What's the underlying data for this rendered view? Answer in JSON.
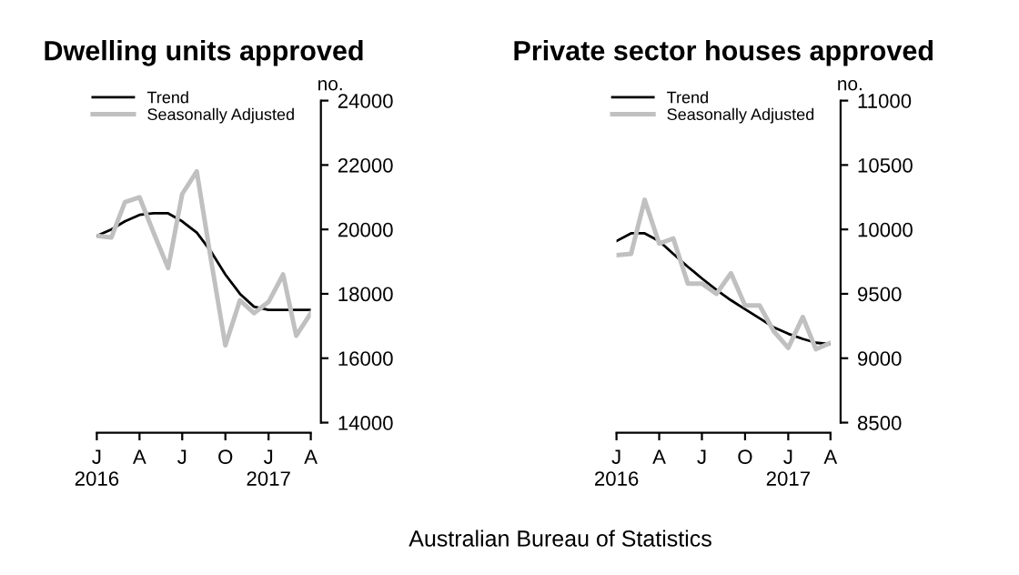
{
  "chart_data": [
    {
      "type": "line",
      "title": "Dwelling units approved",
      "ylabel": "no.",
      "legend": "top left",
      "grid": false,
      "x": [
        "2016-01",
        "2016-02",
        "2016-03",
        "2016-04",
        "2016-05",
        "2016-06",
        "2016-07",
        "2016-08",
        "2016-09",
        "2016-10",
        "2016-11",
        "2016-12",
        "2017-01",
        "2017-02",
        "2017-03",
        "2017-04"
      ],
      "series": [
        {
          "name": "Trend",
          "color": "#000000",
          "values": [
            19800,
            20000,
            20250,
            20450,
            20500,
            20500,
            20250,
            19900,
            19300,
            18600,
            18000,
            17600,
            17500,
            17500,
            17500,
            17500
          ]
        },
        {
          "name": "Seasonally Adjusted",
          "color": "#c0c0c0",
          "values": [
            19800,
            19750,
            20850,
            21000,
            19900,
            18800,
            21100,
            21800,
            19000,
            16400,
            17800,
            17400,
            17750,
            18600,
            16700,
            17400
          ]
        }
      ],
      "xlim": [
        "2016-01",
        "2017-04"
      ],
      "xticks": [
        {
          "value": "2016-01",
          "label": "J\n2016"
        },
        {
          "value": "2016-04",
          "label": "A"
        },
        {
          "value": "2016-07",
          "label": "J"
        },
        {
          "value": "2016-10",
          "label": "O"
        },
        {
          "value": "2017-01",
          "label": "J\n2017"
        },
        {
          "value": "2017-04",
          "label": "A"
        }
      ],
      "ylim": [
        14000,
        24000
      ],
      "yticks": [
        14000,
        16000,
        18000,
        20000,
        22000,
        24000
      ],
      "annotations": [
        "Australian Bureau of Statistics"
      ]
    },
    {
      "type": "line",
      "title": "Private sector houses approved",
      "ylabel": "no.",
      "legend": "top left",
      "grid": false,
      "x": [
        "2016-01",
        "2016-02",
        "2016-03",
        "2016-04",
        "2016-05",
        "2016-06",
        "2016-07",
        "2016-08",
        "2016-09",
        "2016-10",
        "2016-11",
        "2016-12",
        "2017-01",
        "2017-02",
        "2017-03",
        "2017-04"
      ],
      "series": [
        {
          "name": "Trend",
          "color": "#000000",
          "values": [
            9910,
            9970,
            9970,
            9910,
            9810,
            9710,
            9620,
            9530,
            9450,
            9380,
            9310,
            9240,
            9190,
            9150,
            9120,
            9110
          ]
        },
        {
          "name": "Seasonally Adjusted",
          "color": "#c0c0c0",
          "values": [
            9800,
            9810,
            10230,
            9890,
            9930,
            9580,
            9580,
            9500,
            9660,
            9410,
            9410,
            9210,
            9080,
            9320,
            9070,
            9120
          ]
        }
      ],
      "xlim": [
        "2016-01",
        "2017-04"
      ],
      "xticks": [
        {
          "value": "2016-01",
          "label": "J\n2016"
        },
        {
          "value": "2016-04",
          "label": "A"
        },
        {
          "value": "2016-07",
          "label": "J"
        },
        {
          "value": "2016-10",
          "label": "O"
        },
        {
          "value": "2017-01",
          "label": "J\n2017"
        },
        {
          "value": "2017-04",
          "label": "A"
        }
      ],
      "ylim": [
        8500,
        11000
      ],
      "yticks": [
        8500,
        9000,
        9500,
        10000,
        10500,
        11000
      ]
    }
  ]
}
